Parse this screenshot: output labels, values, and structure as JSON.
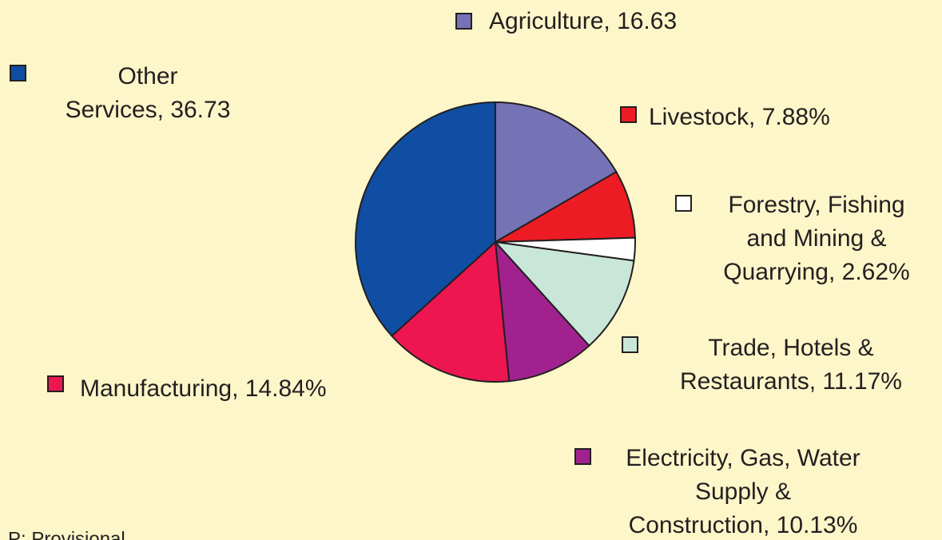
{
  "chart_data": {
    "type": "pie",
    "values": [
      16.63,
      7.88,
      2.62,
      11.17,
      10.13,
      14.84,
      36.73
    ],
    "value_labels": [
      [
        "Agriculture, 16.63"
      ],
      [
        "Livestock, 7.88%"
      ],
      [
        "Forestry, Fishing",
        "and Mining &",
        "Quarrying, 2.62%"
      ],
      [
        "Trade, Hotels &",
        "Restaurants, 11.17%"
      ],
      [
        "Electricity, Gas, Water",
        "Supply &",
        "Construction, 10.13%"
      ],
      [
        "Manufacturing, 14.84%"
      ],
      [
        "Other",
        "Services, 36.73"
      ]
    ],
    "colors": [
      "#7672b6",
      "#ed1c24",
      "#ffffff",
      "#c9e7d8",
      "#a1228f",
      "#ed1651",
      "#0f4ea2"
    ],
    "note": "P: Provisional"
  }
}
